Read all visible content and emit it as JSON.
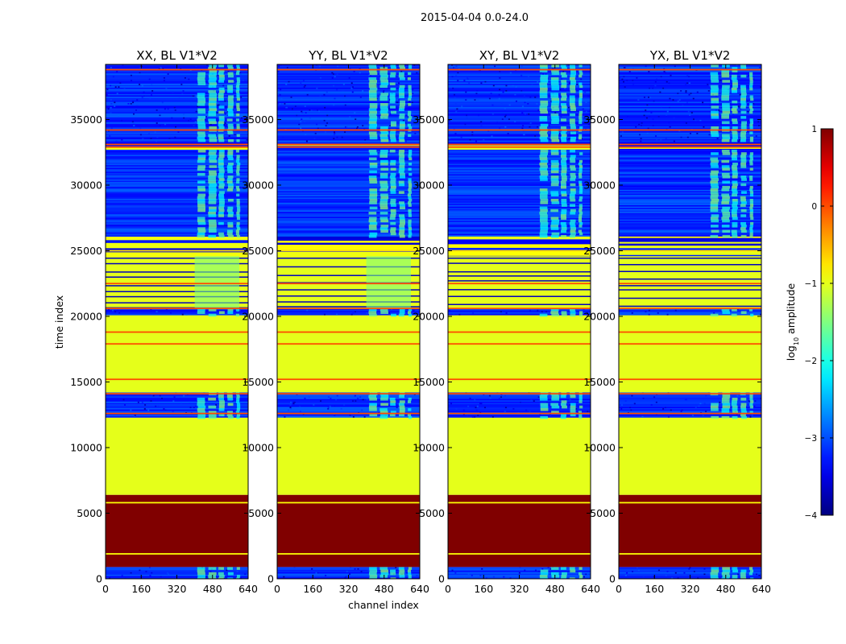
{
  "chart_data": {
    "type": "heatmap",
    "suptitle": "2015-04-04 0.0-24.0",
    "panels": [
      {
        "title": "XX, BL V1*V2",
        "yticks_shown": [
          "0",
          "5000",
          "10000",
          "15000",
          "20000",
          "25000",
          "30000",
          "35000"
        ]
      },
      {
        "title": "YY, BL V1*V2",
        "yticks_shown": [
          "0",
          "5000",
          "10000",
          "15000",
          "20000",
          "25000",
          "30000",
          "35000"
        ]
      },
      {
        "title": "XY, BL V1*V2",
        "yticks_shown": [
          "0",
          "5000",
          "10000",
          "15000",
          "20000",
          "25000",
          "30000",
          "35000"
        ]
      },
      {
        "title": "YX, BL V1*V2",
        "yticks_shown": [
          "0",
          "5000",
          "10000",
          "15000",
          "20000",
          "25000",
          "30000",
          "35000"
        ]
      }
    ],
    "xlabel": "channel index",
    "ylabel": "time index",
    "xlim": [
      0,
      640
    ],
    "ylim": [
      0,
      39200
    ],
    "xticks": [
      0,
      160,
      320,
      480,
      640
    ],
    "yticks": [
      0,
      5000,
      10000,
      15000,
      20000,
      25000,
      30000,
      35000
    ],
    "colorbar": {
      "label": "log10 amplitude",
      "label_base": "log",
      "label_sub": "10",
      "label_rest": " amplitude",
      "range": [
        -4,
        1
      ],
      "ticks": [
        {
          "value": 1,
          "label": "1"
        },
        {
          "value": 0,
          "label": "0"
        },
        {
          "value": -1,
          "label": "−1"
        },
        {
          "value": -2,
          "label": "−2"
        },
        {
          "value": -3,
          "label": "−3"
        },
        {
          "value": -4,
          "label": "−4"
        }
      ]
    },
    "bands": [
      {
        "from": 0,
        "to": 900,
        "kind": "noisy"
      },
      {
        "from": 900,
        "to": 6400,
        "value": 1
      },
      {
        "from": 6400,
        "to": 12300,
        "value": -1
      },
      {
        "from": 12300,
        "to": 14200,
        "kind": "noisy"
      },
      {
        "from": 14200,
        "to": 20100,
        "value": -1
      },
      {
        "from": 20100,
        "to": 20600,
        "kind": "noisy"
      },
      {
        "from": 20600,
        "to": 24600,
        "kind": "flagged_mix"
      },
      {
        "from": 24600,
        "to": 33300,
        "kind": "striped"
      },
      {
        "from": 33300,
        "to": 39200,
        "kind": "noisy"
      }
    ],
    "flag_lines": [
      {
        "y": 1900,
        "value": -0.9
      },
      {
        "y": 5800,
        "value": -0.9
      },
      {
        "y": 12600,
        "value": 0
      },
      {
        "y": 14100,
        "value": 0
      },
      {
        "y": 15200,
        "value": 0
      },
      {
        "y": 17900,
        "value": 0
      },
      {
        "y": 18800,
        "value": 0
      },
      {
        "y": 20600,
        "value": 0
      },
      {
        "y": 22500,
        "value": 0
      },
      {
        "y": 25000,
        "value": -0.7
      },
      {
        "y": 32900,
        "value": 0
      },
      {
        "y": 33100,
        "value": 0
      },
      {
        "y": 34200,
        "value": 0
      },
      {
        "y": 38800,
        "value": 0
      }
    ],
    "rfi_channel_range": [
      400,
      600
    ]
  }
}
